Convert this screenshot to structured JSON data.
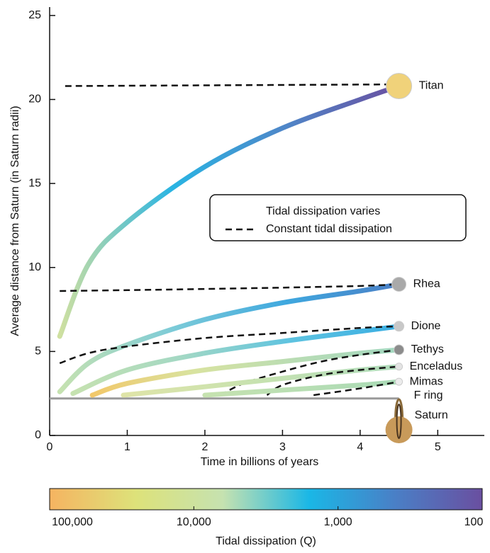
{
  "chart_data": {
    "type": "line",
    "xlabel": "Time in billions of years",
    "ylabel": "Average distance from Saturn (in Saturn radii)",
    "xlim": [
      0,
      5.6
    ],
    "ylim": [
      0,
      25.5
    ],
    "xticks": [
      0,
      1,
      2,
      3,
      4,
      5
    ],
    "yticks": [
      0,
      5,
      10,
      15,
      20,
      25
    ],
    "series": [
      {
        "name": "Titan",
        "x": [
          0.13,
          0.5,
          1,
          2,
          3,
          4,
          4.5
        ],
        "y": [
          5.9,
          10.2,
          12.7,
          16,
          18.3,
          20,
          20.8
        ],
        "colors": [
          "#cfe0a0",
          "#29b4e3",
          "#4f86c8",
          "#6a4fa0"
        ],
        "const_x": [
          0.2,
          4.5
        ],
        "const_y": [
          20.8,
          20.9
        ],
        "marker_color": "#f0d27a",
        "marker_size": 18
      },
      {
        "name": "Rhea",
        "x": [
          0.13,
          0.5,
          1,
          2,
          3,
          4,
          4.5
        ],
        "y": [
          2.6,
          4.3,
          5.4,
          6.9,
          7.9,
          8.6,
          9.0
        ],
        "colors": [
          "#c6e2b0",
          "#7ccbd8",
          "#3fa8df",
          "#4a7fc6"
        ],
        "const_x": [
          0.13,
          1,
          2,
          3,
          4,
          4.5
        ],
        "const_y": [
          8.6,
          8.65,
          8.72,
          8.8,
          8.9,
          9.0
        ],
        "marker_color": "#a9a9a9",
        "marker_size": 10
      },
      {
        "name": "Dione",
        "x": [
          0.3,
          1,
          2,
          3,
          4,
          4.5
        ],
        "y": [
          2.5,
          3.9,
          4.9,
          5.6,
          6.2,
          6.5
        ],
        "colors": [
          "#c6e2b0",
          "#a3d8c4",
          "#5ec3e0",
          "#3aaee3"
        ],
        "const_x": [
          0.13,
          0.5,
          1,
          2,
          3,
          4,
          4.5
        ],
        "const_y": [
          4.3,
          4.9,
          5.3,
          5.8,
          6.1,
          6.4,
          6.5
        ],
        "marker_color": "#c8c8c8",
        "marker_size": 7
      },
      {
        "name": "Tethys",
        "x": [
          0.55,
          1,
          2,
          3,
          4,
          4.5
        ],
        "y": [
          2.4,
          3.1,
          3.9,
          4.4,
          4.9,
          5.1
        ],
        "colors": [
          "#f2c86a",
          "#d8e3a0",
          "#b8dcb4",
          "#a3d8c0"
        ],
        "const_x": [
          2.2,
          2.5,
          3,
          3.5,
          4,
          4.5
        ],
        "const_y": [
          2.4,
          3.1,
          3.8,
          4.4,
          4.8,
          5.1
        ],
        "marker_color": "#8c8c8c",
        "marker_size": 7
      },
      {
        "name": "Enceladus",
        "x": [
          0.95,
          2,
          3,
          4,
          4.5
        ],
        "y": [
          2.4,
          2.9,
          3.4,
          3.9,
          4.1
        ],
        "colors": [
          "#dfe4a8",
          "#c6e2b0",
          "#b0dcbc"
        ],
        "const_x": [
          2.8,
          3,
          3.5,
          4,
          4.5
        ],
        "const_y": [
          2.4,
          3.0,
          3.6,
          3.9,
          4.1
        ],
        "marker_color": "#e4e4e4",
        "marker_size": 5
      },
      {
        "name": "Mimas",
        "x": [
          2,
          3,
          4,
          4.5
        ],
        "y": [
          2.4,
          2.7,
          3.0,
          3.2
        ],
        "colors": [
          "#c6e2b0",
          "#a9dab6"
        ],
        "const_x": [
          3.4,
          4,
          4.5
        ],
        "const_y": [
          2.4,
          2.8,
          3.2
        ],
        "marker_color": "#ececec",
        "marker_size": 5
      }
    ],
    "f_ring": {
      "name": "F ring",
      "y": 2.2,
      "x": [
        0,
        4.5
      ]
    },
    "planet": {
      "name": "Saturn",
      "x": 4.5
    },
    "legend": [
      {
        "label": "Tidal dissipation varies"
      },
      {
        "label": "Constant tidal dissipation"
      }
    ],
    "colorbar": {
      "label": "Tidal dissipation (Q)",
      "log": true,
      "lim": [
        100000,
        100
      ],
      "ticks": [
        {
          "value": 100000,
          "label": "100,000"
        },
        {
          "value": 10000,
          "label": "10,000"
        },
        {
          "value": 1000,
          "label": "1,000"
        },
        100
      ],
      "colors": [
        "#f5b461",
        "#dde27a",
        "#c6e2b0",
        "#1ab7e6",
        "#4a7fc6",
        "#6a4fa0"
      ]
    }
  }
}
